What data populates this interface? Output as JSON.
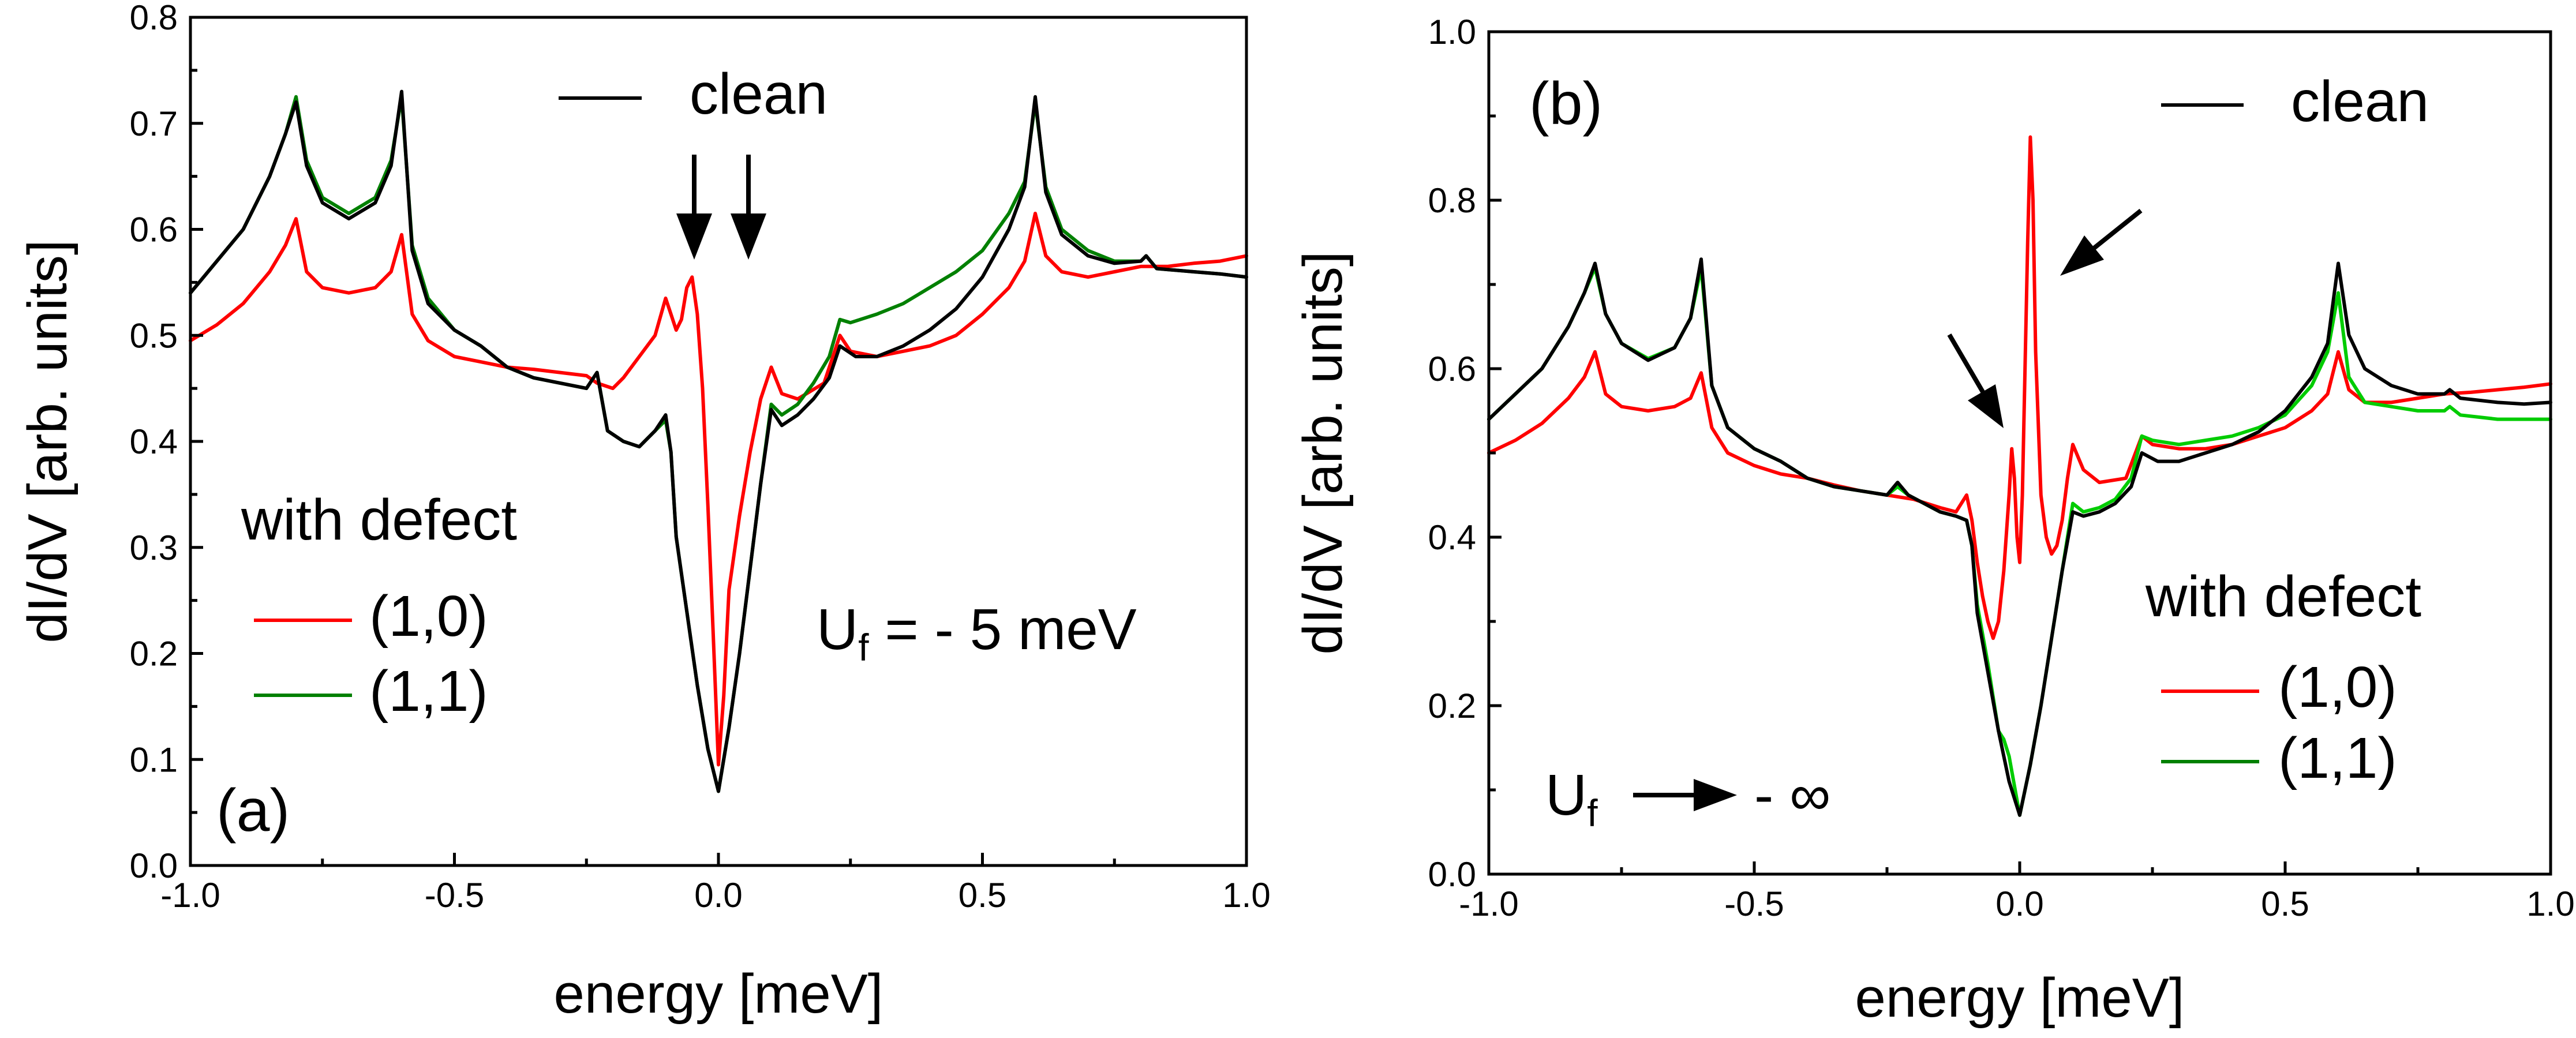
{
  "chart_data": [
    {
      "type": "line",
      "panel_label": "(a)",
      "xlabel": "energy [meV]",
      "ylabel": "dI/dV [arb. units]",
      "xlim": [
        -1.0,
        1.0
      ],
      "ylim": [
        0.0,
        0.8
      ],
      "xticks": [
        "-1.0",
        "-0.5",
        "0.0",
        "0.5",
        "1.0"
      ],
      "yticks": [
        "0.0",
        "0.1",
        "0.2",
        "0.3",
        "0.4",
        "0.5",
        "0.6",
        "0.7",
        "0.8"
      ],
      "xtick_values": [
        -1.0,
        -0.5,
        0.0,
        0.5,
        1.0
      ],
      "ytick_values": [
        0.0,
        0.1,
        0.2,
        0.3,
        0.4,
        0.5,
        0.6,
        0.7,
        0.8
      ],
      "legend_clean": "clean",
      "legend_defect_title": "with defect",
      "annotation_U": "U",
      "annotation_U_sub": "f",
      "annotation_rest": " = - 5 meV",
      "series": [
        {
          "name": "clean",
          "color": "#000000",
          "x": [
            -1.0,
            -0.95,
            -0.9,
            -0.85,
            -0.82,
            -0.8,
            -0.78,
            -0.75,
            -0.7,
            -0.65,
            -0.62,
            -0.6,
            -0.58,
            -0.55,
            -0.5,
            -0.45,
            -0.4,
            -0.35,
            -0.3,
            -0.25,
            -0.23,
            -0.21,
            -0.18,
            -0.15,
            -0.12,
            -0.1,
            -0.09,
            -0.08,
            -0.06,
            -0.04,
            -0.02,
            0.0,
            0.02,
            0.04,
            0.06,
            0.08,
            0.1,
            0.12,
            0.15,
            0.18,
            0.21,
            0.23,
            0.26,
            0.3,
            0.35,
            0.4,
            0.45,
            0.5,
            0.55,
            0.58,
            0.6,
            0.62,
            0.65,
            0.7,
            0.75,
            0.8,
            0.81,
            0.83,
            0.9,
            0.95,
            1.0
          ],
          "y": [
            0.54,
            0.57,
            0.6,
            0.65,
            0.69,
            0.72,
            0.66,
            0.625,
            0.61,
            0.625,
            0.66,
            0.73,
            0.58,
            0.53,
            0.505,
            0.49,
            0.47,
            0.46,
            0.455,
            0.45,
            0.465,
            0.41,
            0.4,
            0.395,
            0.41,
            0.425,
            0.39,
            0.31,
            0.24,
            0.17,
            0.11,
            0.07,
            0.13,
            0.2,
            0.28,
            0.36,
            0.43,
            0.415,
            0.425,
            0.44,
            0.46,
            0.49,
            0.48,
            0.48,
            0.49,
            0.505,
            0.525,
            0.555,
            0.6,
            0.64,
            0.725,
            0.635,
            0.595,
            0.575,
            0.568,
            0.57,
            0.575,
            0.563,
            0.56,
            0.558,
            0.555
          ]
        },
        {
          "name": "(1,0)",
          "color": "#ff0000",
          "x": [
            -1.0,
            -0.95,
            -0.9,
            -0.85,
            -0.82,
            -0.8,
            -0.78,
            -0.75,
            -0.7,
            -0.65,
            -0.62,
            -0.6,
            -0.58,
            -0.55,
            -0.5,
            -0.45,
            -0.4,
            -0.35,
            -0.3,
            -0.25,
            -0.23,
            -0.2,
            -0.18,
            -0.15,
            -0.12,
            -0.1,
            -0.09,
            -0.08,
            -0.07,
            -0.06,
            -0.05,
            -0.04,
            -0.03,
            -0.02,
            -0.01,
            0.0,
            0.01,
            0.02,
            0.04,
            0.06,
            0.08,
            0.1,
            0.12,
            0.15,
            0.2,
            0.23,
            0.25,
            0.3,
            0.35,
            0.4,
            0.45,
            0.5,
            0.55,
            0.58,
            0.6,
            0.62,
            0.65,
            0.7,
            0.75,
            0.8,
            0.85,
            0.9,
            0.95,
            1.0
          ],
          "y": [
            0.495,
            0.51,
            0.53,
            0.56,
            0.585,
            0.61,
            0.56,
            0.545,
            0.54,
            0.545,
            0.56,
            0.595,
            0.52,
            0.495,
            0.48,
            0.475,
            0.47,
            0.468,
            0.465,
            0.462,
            0.455,
            0.45,
            0.46,
            0.48,
            0.5,
            0.535,
            0.52,
            0.505,
            0.515,
            0.545,
            0.555,
            0.52,
            0.45,
            0.34,
            0.22,
            0.095,
            0.16,
            0.26,
            0.33,
            0.39,
            0.44,
            0.47,
            0.445,
            0.44,
            0.455,
            0.5,
            0.485,
            0.48,
            0.485,
            0.49,
            0.5,
            0.52,
            0.545,
            0.57,
            0.615,
            0.575,
            0.56,
            0.555,
            0.56,
            0.565,
            0.565,
            0.568,
            0.57,
            0.575
          ]
        },
        {
          "name": "(1,1)",
          "color": "#008000",
          "x": [
            -1.0,
            -0.95,
            -0.9,
            -0.85,
            -0.82,
            -0.8,
            -0.78,
            -0.75,
            -0.7,
            -0.65,
            -0.62,
            -0.6,
            -0.58,
            -0.55,
            -0.5,
            -0.45,
            -0.4,
            -0.35,
            -0.3,
            -0.25,
            -0.23,
            -0.21,
            -0.18,
            -0.15,
            -0.12,
            -0.1,
            -0.09,
            -0.08,
            -0.06,
            -0.04,
            -0.02,
            0.0,
            0.02,
            0.04,
            0.06,
            0.08,
            0.1,
            0.12,
            0.15,
            0.18,
            0.21,
            0.23,
            0.25,
            0.3,
            0.35,
            0.4,
            0.45,
            0.5,
            0.55,
            0.58,
            0.6,
            0.62,
            0.65,
            0.7,
            0.75,
            0.8,
            0.81,
            0.83,
            0.9,
            0.95,
            1.0
          ],
          "y": [
            0.54,
            0.57,
            0.6,
            0.65,
            0.69,
            0.725,
            0.665,
            0.63,
            0.615,
            0.63,
            0.665,
            0.725,
            0.585,
            0.535,
            0.505,
            0.49,
            0.47,
            0.46,
            0.455,
            0.45,
            0.465,
            0.41,
            0.4,
            0.395,
            0.41,
            0.42,
            0.39,
            0.31,
            0.24,
            0.17,
            0.11,
            0.07,
            0.13,
            0.2,
            0.28,
            0.36,
            0.435,
            0.425,
            0.435,
            0.455,
            0.48,
            0.515,
            0.512,
            0.52,
            0.53,
            0.545,
            0.56,
            0.58,
            0.615,
            0.645,
            0.72,
            0.64,
            0.6,
            0.58,
            0.57,
            0.57,
            0.575,
            0.563,
            0.56,
            0.558,
            0.555
          ]
        }
      ]
    },
    {
      "type": "line",
      "panel_label": "(b)",
      "xlabel": "energy [meV]",
      "ylabel": "dI/dV [arb. units]",
      "xlim": [
        -1.0,
        1.0
      ],
      "ylim": [
        0.0,
        1.0
      ],
      "xticks": [
        "-1.0",
        "-0.5",
        "0.0",
        "0.5",
        "1.0"
      ],
      "yticks": [
        "0.0",
        "0.2",
        "0.4",
        "0.6",
        "0.8",
        "1.0"
      ],
      "xtick_values": [
        -1.0,
        -0.5,
        0.0,
        0.5,
        1.0
      ],
      "ytick_values": [
        0.0,
        0.2,
        0.4,
        0.6,
        0.8,
        1.0
      ],
      "legend_clean": "clean",
      "legend_defect_title": "with defect",
      "annotation_U": "U",
      "annotation_U_sub": "f",
      "annotation_rest": "- ∞",
      "series": [
        {
          "name": "clean",
          "color": "#000000",
          "x": [
            -1.0,
            -0.95,
            -0.9,
            -0.85,
            -0.82,
            -0.8,
            -0.78,
            -0.75,
            -0.7,
            -0.65,
            -0.62,
            -0.6,
            -0.58,
            -0.55,
            -0.5,
            -0.45,
            -0.4,
            -0.35,
            -0.3,
            -0.25,
            -0.23,
            -0.21,
            -0.18,
            -0.15,
            -0.12,
            -0.1,
            -0.09,
            -0.08,
            -0.06,
            -0.04,
            -0.02,
            0.0,
            0.02,
            0.04,
            0.06,
            0.08,
            0.1,
            0.12,
            0.15,
            0.18,
            0.21,
            0.23,
            0.26,
            0.3,
            0.35,
            0.4,
            0.45,
            0.5,
            0.55,
            0.58,
            0.6,
            0.62,
            0.65,
            0.7,
            0.75,
            0.8,
            0.81,
            0.83,
            0.9,
            0.95,
            1.0
          ],
          "y": [
            0.54,
            0.57,
            0.6,
            0.65,
            0.69,
            0.725,
            0.665,
            0.63,
            0.61,
            0.625,
            0.66,
            0.73,
            0.58,
            0.53,
            0.505,
            0.49,
            0.47,
            0.46,
            0.455,
            0.45,
            0.465,
            0.45,
            0.44,
            0.43,
            0.425,
            0.42,
            0.39,
            0.31,
            0.24,
            0.17,
            0.11,
            0.07,
            0.13,
            0.2,
            0.28,
            0.36,
            0.43,
            0.425,
            0.43,
            0.44,
            0.46,
            0.5,
            0.49,
            0.49,
            0.5,
            0.51,
            0.525,
            0.55,
            0.59,
            0.63,
            0.725,
            0.64,
            0.6,
            0.58,
            0.57,
            0.57,
            0.575,
            0.565,
            0.56,
            0.558,
            0.56
          ]
        },
        {
          "name": "(1,0)",
          "color": "#ff0000",
          "x": [
            -1.0,
            -0.95,
            -0.9,
            -0.85,
            -0.82,
            -0.8,
            -0.78,
            -0.75,
            -0.7,
            -0.65,
            -0.62,
            -0.6,
            -0.58,
            -0.55,
            -0.5,
            -0.45,
            -0.4,
            -0.35,
            -0.3,
            -0.25,
            -0.2,
            -0.15,
            -0.12,
            -0.1,
            -0.09,
            -0.08,
            -0.07,
            -0.06,
            -0.05,
            -0.04,
            -0.03,
            -0.02,
            -0.015,
            -0.01,
            -0.005,
            0.0,
            0.005,
            0.01,
            0.015,
            0.02,
            0.025,
            0.03,
            0.04,
            0.05,
            0.06,
            0.07,
            0.08,
            0.09,
            0.1,
            0.12,
            0.15,
            0.2,
            0.23,
            0.25,
            0.3,
            0.35,
            0.4,
            0.45,
            0.5,
            0.55,
            0.58,
            0.6,
            0.62,
            0.65,
            0.7,
            0.75,
            0.8,
            0.85,
            0.9,
            0.95,
            1.0
          ],
          "y": [
            0.5,
            0.515,
            0.535,
            0.565,
            0.59,
            0.62,
            0.57,
            0.555,
            0.55,
            0.555,
            0.565,
            0.595,
            0.53,
            0.5,
            0.485,
            0.475,
            0.47,
            0.462,
            0.455,
            0.45,
            0.445,
            0.435,
            0.43,
            0.45,
            0.42,
            0.37,
            0.33,
            0.3,
            0.28,
            0.3,
            0.36,
            0.45,
            0.505,
            0.47,
            0.4,
            0.37,
            0.45,
            0.6,
            0.75,
            0.875,
            0.8,
            0.62,
            0.45,
            0.4,
            0.38,
            0.39,
            0.42,
            0.47,
            0.51,
            0.48,
            0.465,
            0.47,
            0.52,
            0.51,
            0.505,
            0.505,
            0.51,
            0.52,
            0.53,
            0.55,
            0.57,
            0.62,
            0.575,
            0.56,
            0.56,
            0.565,
            0.57,
            0.572,
            0.575,
            0.578,
            0.582
          ]
        },
        {
          "name": "(1,1)",
          "color": "#00cc00",
          "x": [
            -1.0,
            -0.95,
            -0.9,
            -0.85,
            -0.82,
            -0.8,
            -0.78,
            -0.75,
            -0.7,
            -0.65,
            -0.62,
            -0.6,
            -0.58,
            -0.55,
            -0.5,
            -0.45,
            -0.4,
            -0.35,
            -0.3,
            -0.25,
            -0.23,
            -0.21,
            -0.18,
            -0.15,
            -0.12,
            -0.1,
            -0.09,
            -0.08,
            -0.06,
            -0.04,
            -0.03,
            -0.02,
            0.0,
            0.02,
            0.04,
            0.06,
            0.08,
            0.1,
            0.12,
            0.15,
            0.18,
            0.21,
            0.23,
            0.25,
            0.3,
            0.35,
            0.4,
            0.45,
            0.5,
            0.55,
            0.58,
            0.6,
            0.62,
            0.65,
            0.7,
            0.75,
            0.8,
            0.81,
            0.83,
            0.9,
            0.95,
            1.0
          ],
          "y": [
            0.54,
            0.57,
            0.6,
            0.65,
            0.69,
            0.72,
            0.665,
            0.63,
            0.612,
            0.625,
            0.66,
            0.72,
            0.58,
            0.53,
            0.505,
            0.49,
            0.47,
            0.46,
            0.455,
            0.45,
            0.46,
            0.45,
            0.44,
            0.43,
            0.425,
            0.42,
            0.39,
            0.32,
            0.25,
            0.17,
            0.16,
            0.14,
            0.07,
            0.13,
            0.2,
            0.28,
            0.36,
            0.44,
            0.43,
            0.435,
            0.445,
            0.47,
            0.52,
            0.515,
            0.51,
            0.515,
            0.52,
            0.53,
            0.545,
            0.58,
            0.62,
            0.69,
            0.59,
            0.56,
            0.555,
            0.55,
            0.55,
            0.555,
            0.545,
            0.54,
            0.54,
            0.54
          ]
        }
      ]
    }
  ]
}
